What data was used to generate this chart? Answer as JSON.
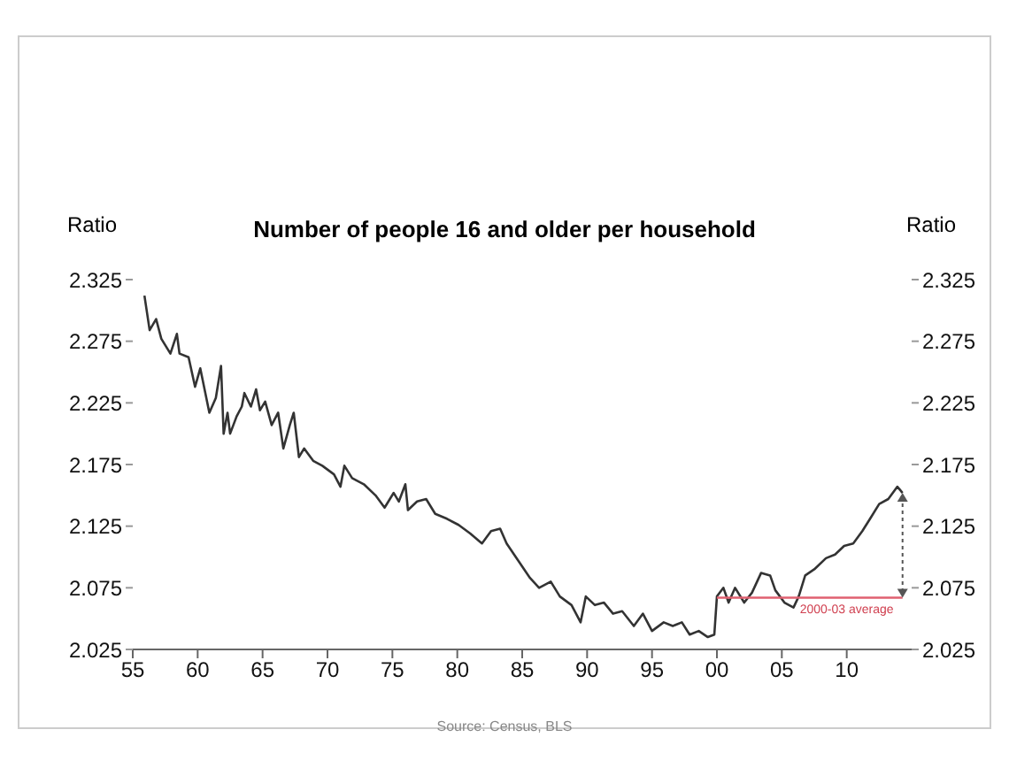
{
  "chart_data": {
    "type": "line",
    "title": "Number of people 16 and older per household",
    "ylabel": "Ratio",
    "y2label": "Ratio",
    "xlim": [
      1955,
      2015
    ],
    "xticks": [
      {
        "value": 1955,
        "label": "55"
      },
      {
        "value": 1960,
        "label": "60"
      },
      {
        "value": 1965,
        "label": "65"
      },
      {
        "value": 1970,
        "label": "70"
      },
      {
        "value": 1975,
        "label": "75"
      },
      {
        "value": 1980,
        "label": "80"
      },
      {
        "value": 1985,
        "label": "85"
      },
      {
        "value": 1990,
        "label": "90"
      },
      {
        "value": 1995,
        "label": "95"
      },
      {
        "value": 2000,
        "label": "00"
      },
      {
        "value": 2005,
        "label": "05"
      },
      {
        "value": 2010,
        "label": "10"
      }
    ],
    "ylim": [
      2.025,
      2.325
    ],
    "yticks": [
      2.025,
      2.075,
      2.125,
      2.175,
      2.225,
      2.275,
      2.325
    ],
    "y2lim": [
      2.025,
      2.325
    ],
    "y2ticks": [
      2.025,
      2.075,
      2.125,
      2.175,
      2.225,
      2.275,
      2.325
    ],
    "grid": false,
    "marker": "none",
    "line_style": "solid",
    "series": [
      {
        "color": "#333333",
        "x": [
          1955.9,
          1956.3,
          1956.8,
          1957.2,
          1957.9,
          1958.4,
          1958.6,
          1959.3,
          1959.8,
          1960.2,
          1960.9,
          1961.4,
          1961.8,
          1962.0,
          1962.3,
          1962.5,
          1963.0,
          1963.4,
          1963.6,
          1964.1,
          1964.5,
          1964.8,
          1965.2,
          1965.7,
          1966.2,
          1966.6,
          1967.1,
          1967.4,
          1967.8,
          1968.2,
          1968.9,
          1969.6,
          1970.5,
          1971.0,
          1971.3,
          1971.9,
          1972.8,
          1973.7,
          1974.4,
          1975.1,
          1975.5,
          1976.0,
          1976.2,
          1976.9,
          1977.6,
          1978.3,
          1979.2,
          1980.1,
          1981.0,
          1981.9,
          1982.6,
          1983.3,
          1983.8,
          1984.7,
          1985.6,
          1986.3,
          1987.2,
          1987.9,
          1988.8,
          1989.5,
          1989.9,
          1990.6,
          1991.3,
          1992.0,
          1992.7,
          1993.6,
          1994.3,
          1995.0,
          1995.9,
          1996.6,
          1997.3,
          1997.9,
          1998.6,
          1999.3,
          1999.8,
          2000.0,
          2000.5,
          2000.9,
          2001.4,
          2002.1,
          2002.7,
          2003.4,
          2004.1,
          2004.5,
          2005.2,
          2005.9,
          2006.3,
          2006.8,
          2007.5,
          2008.4,
          2009.1,
          2009.8,
          2010.5,
          2011.2,
          2011.8,
          2012.5,
          2013.2,
          2013.9,
          2014.3
        ],
        "values": [
          2.312,
          2.284,
          2.293,
          2.277,
          2.265,
          2.281,
          2.265,
          2.262,
          2.238,
          2.253,
          2.217,
          2.229,
          2.255,
          2.2,
          2.217,
          2.2,
          2.214,
          2.222,
          2.233,
          2.222,
          2.236,
          2.219,
          2.226,
          2.207,
          2.217,
          2.188,
          2.207,
          2.217,
          2.181,
          2.188,
          2.178,
          2.174,
          2.167,
          2.157,
          2.174,
          2.164,
          2.159,
          2.15,
          2.14,
          2.152,
          2.145,
          2.159,
          2.138,
          2.145,
          2.147,
          2.135,
          2.131,
          2.126,
          2.119,
          2.111,
          2.121,
          2.123,
          2.111,
          2.097,
          2.083,
          2.075,
          2.08,
          2.068,
          2.061,
          2.047,
          2.068,
          2.061,
          2.063,
          2.054,
          2.056,
          2.044,
          2.054,
          2.04,
          2.047,
          2.044,
          2.047,
          2.037,
          2.04,
          2.035,
          2.037,
          2.068,
          2.075,
          2.063,
          2.075,
          2.063,
          2.071,
          2.087,
          2.085,
          2.073,
          2.063,
          2.059,
          2.068,
          2.085,
          2.09,
          2.099,
          2.102,
          2.109,
          2.111,
          2.121,
          2.131,
          2.143,
          2.147,
          2.157,
          2.152
        ]
      },
      {
        "color": "#e06070",
        "x": [
          2000,
          2014.3
        ],
        "values": [
          2.067,
          2.067
        ]
      }
    ],
    "annotations": [
      {
        "text": "2000-03 average",
        "x": 2010,
        "y": 2.067
      },
      "Source: Census, BLS"
    ]
  }
}
